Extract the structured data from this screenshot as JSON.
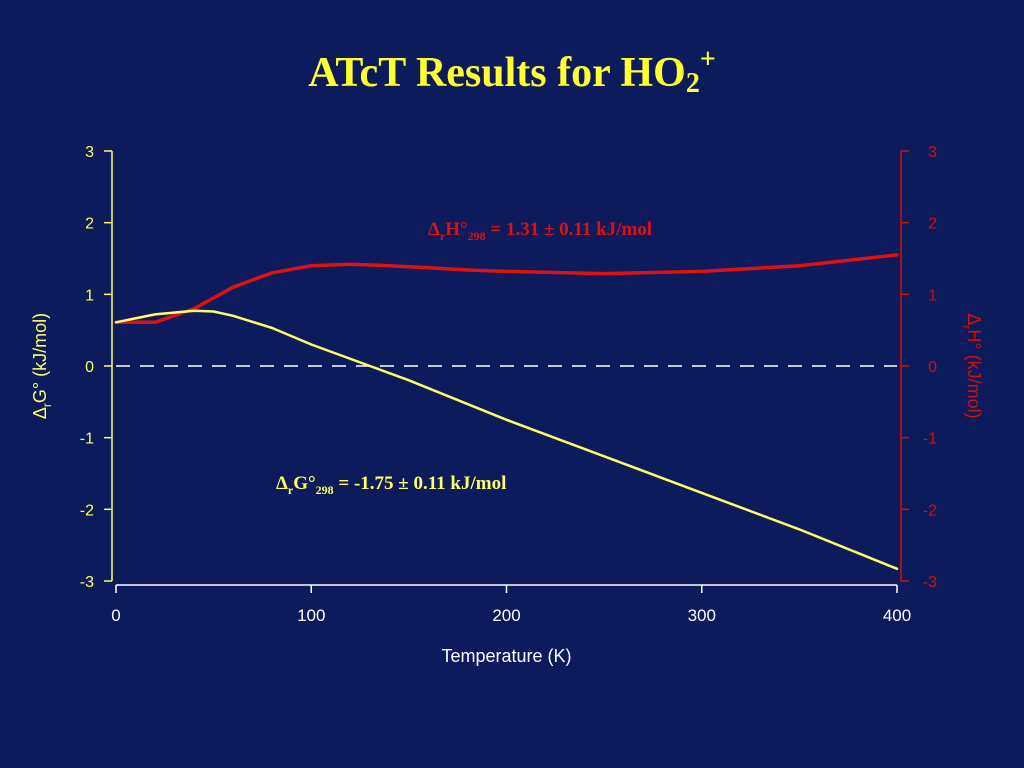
{
  "slide": {
    "title": {
      "text": "ATcT Results for HO",
      "sub": "2",
      "sup": "+"
    }
  },
  "colors": {
    "background": "#0d1a5c",
    "left_axis": "#ffff66",
    "right_axis": "#cc1111",
    "g_line": "#ffff66",
    "h_line": "#dd1111",
    "zero_line": "#ffffff",
    "title": "#ffff33",
    "x_axis": "#ffffff"
  },
  "chart_data": {
    "type": "line",
    "xlabel": "Temperature (K)",
    "xlim": [
      0,
      400
    ],
    "x_ticks": [
      "0",
      "100",
      "200",
      "300",
      "400"
    ],
    "left_axis": {
      "label_delta": "Δ",
      "label_sub": "r",
      "label_rest": "G° (kJ/mol)",
      "ylim": [
        -3,
        3
      ],
      "ticks": [
        "-3",
        "-2",
        "-1",
        "0",
        "1",
        "2",
        "3"
      ]
    },
    "right_axis": {
      "label_delta": "Δ",
      "label_sub": "r",
      "label_rest": "H° (kJ/mol)",
      "ylim": [
        -3,
        3
      ],
      "ticks": [
        "-3",
        "-2",
        "-1",
        "0",
        "1",
        "2",
        "3"
      ]
    },
    "zero_line": {
      "y": 0,
      "style": "dashed"
    },
    "series": [
      {
        "key": "H",
        "axis": "right",
        "x": [
          0,
          20,
          40,
          60,
          80,
          100,
          120,
          140,
          160,
          180,
          200,
          250,
          300,
          350,
          400
        ],
        "y": [
          0.61,
          0.61,
          0.8,
          1.1,
          1.3,
          1.4,
          1.42,
          1.4,
          1.37,
          1.34,
          1.32,
          1.29,
          1.32,
          1.4,
          1.55
        ]
      },
      {
        "key": "G",
        "axis": "left",
        "x": [
          0,
          20,
          40,
          50,
          60,
          80,
          100,
          150,
          200,
          250,
          300,
          350,
          400
        ],
        "y": [
          0.61,
          0.72,
          0.77,
          0.76,
          0.7,
          0.53,
          0.3,
          -0.2,
          -0.75,
          -1.26,
          -1.77,
          -2.28,
          -2.83
        ]
      }
    ],
    "annotations": {
      "H": {
        "delta": "Δ",
        "sub1": "r",
        "main": "H°",
        "sub2": "298",
        "value": " = 1.31 ± 0.11 kJ/mol"
      },
      "G": {
        "delta": "Δ",
        "sub1": "r",
        "main": "G°",
        "sub2": "298",
        "value": " = -1.75 ± 0.11 kJ/mol"
      }
    }
  }
}
